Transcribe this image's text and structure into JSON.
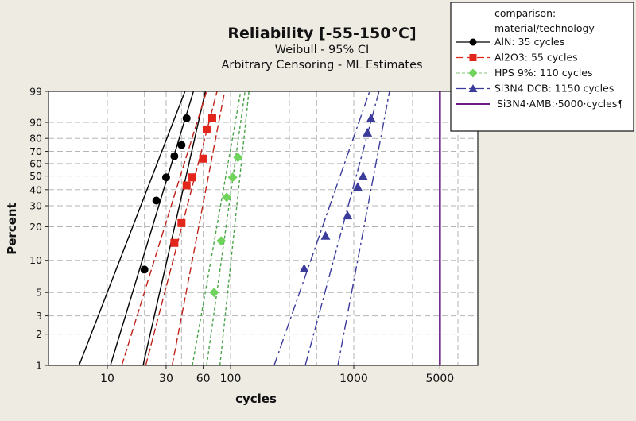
{
  "chart_data": {
    "type": "scatter",
    "title": "Reliability [-55-150°C]",
    "subtitle_1": "Weibull - 95% CI",
    "subtitle_2": "Arbitrary Censoring - ML Estimates",
    "xlabel": "cycles",
    "ylabel": "Percent",
    "x_scale": "log",
    "y_scale": "weibull",
    "xlim": [
      3.3,
      9800
    ],
    "ylim": [
      1,
      99
    ],
    "grid": true,
    "legend_position": "top-right",
    "x_ticks": [
      "10",
      "30",
      "60",
      "100",
      "1000",
      "5000"
    ],
    "x_tick_values": [
      10,
      30,
      60,
      100,
      1000,
      5000
    ],
    "x_grid_values": [
      10,
      20,
      30,
      40,
      60,
      100,
      300,
      500,
      1000,
      3000,
      7000
    ],
    "y_ticks": [
      "1",
      "2",
      "3",
      "5",
      "10",
      "20",
      "30",
      "40",
      "50",
      "60",
      "70",
      "80",
      "90",
      "99"
    ],
    "y_tick_values": [
      1,
      2,
      3,
      5,
      10,
      20,
      30,
      40,
      50,
      60,
      70,
      80,
      90,
      99
    ],
    "legend_title_1": "comparison:",
    "legend_title_2": "material/technology",
    "series": [
      {
        "name": "AlN: 35 cycles",
        "color": "#000000",
        "marker": "circle",
        "line_style": "solid",
        "points": [
          [
            20,
            8.2
          ],
          [
            25,
            33
          ],
          [
            30,
            49
          ],
          [
            35,
            66
          ],
          [
            40,
            75
          ],
          [
            44,
            92
          ]
        ],
        "fit_center": [
          [
            10.6,
            1
          ],
          [
            50,
            99
          ]
        ],
        "ci_lower": [
          [
            5.9,
            1
          ],
          [
            42.7,
            99
          ]
        ],
        "ci_upper": [
          [
            19.5,
            1
          ],
          [
            62.5,
            99
          ]
        ]
      },
      {
        "name": "Al2O3: 55 cycles",
        "color": "#e3261b",
        "marker": "square",
        "line_style": "dashed",
        "points": [
          [
            35,
            14.4
          ],
          [
            40,
            21.5
          ],
          [
            44,
            43
          ],
          [
            49,
            49
          ],
          [
            60,
            64
          ],
          [
            64,
            86
          ],
          [
            71,
            92
          ]
        ],
        "fit_center": [
          [
            20.5,
            1
          ],
          [
            77.7,
            99
          ]
        ],
        "ci_lower": [
          [
            13.1,
            1
          ],
          [
            63.9,
            99
          ]
        ],
        "ci_upper": [
          [
            33.6,
            1
          ],
          [
            89.6,
            99
          ]
        ]
      },
      {
        "name": "HPS 9%: 110 cycles",
        "color": "#6fd35c",
        "marker": "diamond",
        "line_style": "short-dashed",
        "points": [
          [
            73.5,
            5
          ],
          [
            84,
            15
          ],
          [
            93,
            35
          ],
          [
            104,
            49
          ],
          [
            115,
            65
          ]
        ],
        "fit_center": [
          [
            64,
            1
          ],
          [
            131,
            99
          ]
        ],
        "ci_lower": [
          [
            49,
            1
          ],
          [
            121,
            99
          ]
        ],
        "ci_upper": [
          [
            82,
            1
          ],
          [
            141,
            99
          ]
        ]
      },
      {
        "name": "Si3N4 DCB: 1150 cycles",
        "color": "#3b3b9c",
        "marker": "triangle",
        "line_style": "dash-dot",
        "points": [
          [
            396,
            8.4
          ],
          [
            590,
            16.7
          ],
          [
            890,
            25
          ],
          [
            1077,
            42
          ],
          [
            1190,
            50
          ],
          [
            1290,
            84
          ],
          [
            1380,
            92
          ]
        ],
        "fit_center": [
          [
            404,
            1
          ],
          [
            1603,
            99
          ]
        ],
        "ci_lower": [
          [
            226,
            1
          ],
          [
            1345,
            99
          ]
        ],
        "ci_upper": [
          [
            743,
            1
          ],
          [
            1950,
            99
          ]
        ]
      },
      {
        "name": "Si3N4·AMB:·5000·cycles¶",
        "color": "#6a1b86",
        "marker": "none",
        "line_style": "solid",
        "vertical_at": 5000
      }
    ]
  }
}
